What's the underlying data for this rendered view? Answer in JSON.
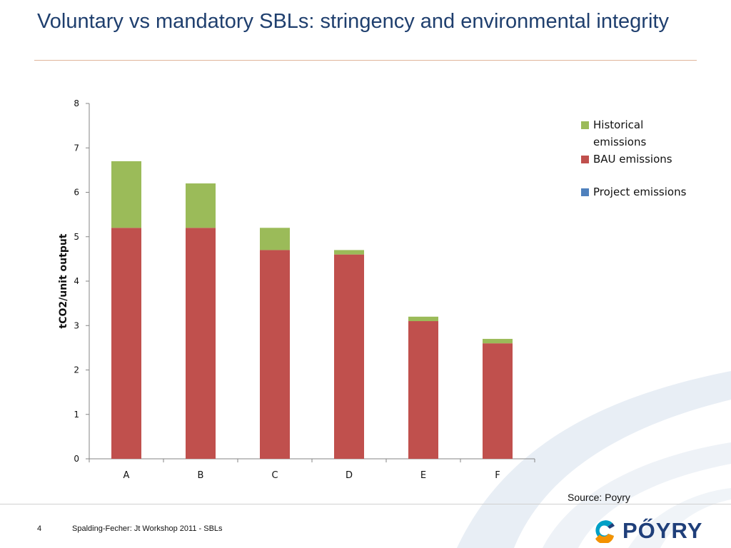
{
  "slide": {
    "title": "Voluntary vs mandatory SBLs: stringency and environmental integrity",
    "source": "Source: Poyry",
    "page_number": "4",
    "footer": "Spalding-Fecher: Jt Workshop 2011 - SBLs",
    "logo_text": "PŐYRY"
  },
  "colors": {
    "title": "#1f3f6e",
    "historical": "#9bbb59",
    "bau": "#c0504d",
    "project": "#4f81bd",
    "logo_blue": "#1f3f7a",
    "logo_orange": "#f39200",
    "logo_cyan": "#00a0c6"
  },
  "chart_data": {
    "type": "bar",
    "stacked": true,
    "categories": [
      "A",
      "B",
      "C",
      "D",
      "E",
      "F"
    ],
    "series": [
      {
        "name": "Project emissions",
        "values": [
          0,
          0,
          0,
          0,
          0,
          0
        ],
        "color": "#4f81bd"
      },
      {
        "name": "BAU emissions",
        "values": [
          5.2,
          5.2,
          4.7,
          4.6,
          3.1,
          2.6
        ],
        "color": "#c0504d"
      },
      {
        "name": "Historical emissions",
        "values": [
          1.5,
          1.0,
          0.5,
          0.1,
          0.1,
          0.1
        ],
        "color": "#9bbb59"
      }
    ],
    "legend_order": [
      "Historical emissions",
      "BAU emissions",
      "Project emissions"
    ],
    "ylabel": "tCO2/unit output",
    "xlabel": "",
    "ylim": [
      0,
      8
    ],
    "yticks": [
      "0",
      "1",
      "2",
      "3",
      "4",
      "5",
      "6",
      "7",
      "8"
    ],
    "grid": false,
    "legend_position": "right"
  }
}
